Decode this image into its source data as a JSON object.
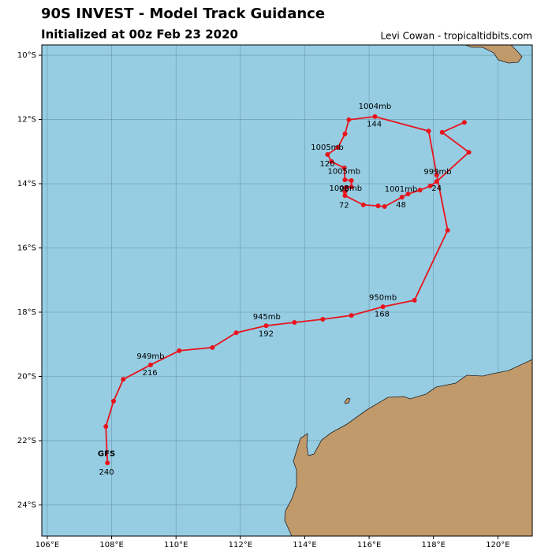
{
  "header": {
    "title": "90S INVEST - Model Track Guidance",
    "subtitle": "Initialized at 00z Feb 23 2020",
    "credit": "Levi Cowan - tropicaltidbits.com"
  },
  "map": {
    "xlim": [
      105.83,
      121.07
    ],
    "ylim": [
      -24.97,
      -9.68
    ],
    "xticks": [
      {
        "value": 106,
        "label": "106°E"
      },
      {
        "value": 108,
        "label": "108°E"
      },
      {
        "value": 110,
        "label": "110°E"
      },
      {
        "value": 112,
        "label": "112°E"
      },
      {
        "value": 114,
        "label": "114°E"
      },
      {
        "value": 116,
        "label": "116°E"
      },
      {
        "value": 118,
        "label": "118°E"
      },
      {
        "value": 120,
        "label": "120°E"
      }
    ],
    "yticks": [
      {
        "value": -10,
        "label": "10°S"
      },
      {
        "value": -12,
        "label": "12°S"
      },
      {
        "value": -14,
        "label": "14°S"
      },
      {
        "value": -16,
        "label": "16°S"
      },
      {
        "value": -18,
        "label": "18°S"
      },
      {
        "value": -20,
        "label": "20°S"
      },
      {
        "value": -22,
        "label": "22°S"
      },
      {
        "value": -24,
        "label": "24°S"
      }
    ],
    "track": {
      "color": "#e8141c",
      "lon": [
        107.87,
        107.82,
        108.06,
        108.36,
        109.21,
        110.1,
        111.13,
        111.87,
        112.8,
        113.68,
        114.56,
        115.45,
        116.43,
        117.41,
        118.44,
        118.1,
        117.85,
        116.18,
        115.37,
        115.25,
        115.03,
        114.71,
        114.83,
        115.23,
        115.25,
        115.45,
        115.45,
        115.28,
        115.25,
        115.25,
        115.82,
        116.28,
        116.48,
        117.02,
        117.21,
        117.58,
        117.9,
        118.1,
        119.1,
        118.27,
        118.96
      ],
      "lat": [
        -22.69,
        -21.56,
        -20.77,
        -20.09,
        -19.64,
        -19.2,
        -19.1,
        -18.64,
        -18.42,
        -18.32,
        -18.22,
        -18.1,
        -17.83,
        -17.63,
        -15.45,
        -13.73,
        -12.36,
        -11.91,
        -12.01,
        -12.45,
        -12.87,
        -13.09,
        -13.31,
        -13.51,
        -13.88,
        -13.9,
        -14.1,
        -14.12,
        -14.25,
        -14.37,
        -14.66,
        -14.69,
        -14.71,
        -14.42,
        -14.32,
        -14.2,
        -14.07,
        -13.93,
        -13.02,
        -12.4,
        -12.09
      ]
    },
    "annotations": [
      {
        "text": "1004mb",
        "lon": 116.18,
        "lat": -11.6
      },
      {
        "text": "144",
        "lon": 116.16,
        "lat": -12.15
      },
      {
        "text": "1005mb",
        "lon": 114.7,
        "lat": -12.87
      },
      {
        "text": "120",
        "lon": 114.7,
        "lat": -13.38
      },
      {
        "text": "1005mb",
        "lon": 115.22,
        "lat": -13.62
      },
      {
        "text": "1008mb",
        "lon": 115.27,
        "lat": -14.15
      },
      {
        "text": "96",
        "lon": 115.22,
        "lat": -14.17
      },
      {
        "text": "72",
        "lon": 115.22,
        "lat": -14.67
      },
      {
        "text": "1001mb",
        "lon": 116.99,
        "lat": -14.17
      },
      {
        "text": "48",
        "lon": 116.99,
        "lat": -14.66
      },
      {
        "text": "999mb",
        "lon": 118.13,
        "lat": -13.63
      },
      {
        "text": "24",
        "lon": 118.1,
        "lat": -14.15
      },
      {
        "text": "950mb",
        "lon": 116.43,
        "lat": -17.55
      },
      {
        "text": "168",
        "lon": 116.4,
        "lat": -18.06
      },
      {
        "text": "945mb",
        "lon": 112.82,
        "lat": -18.15
      },
      {
        "text": "192",
        "lon": 112.8,
        "lat": -18.67
      },
      {
        "text": "949mb",
        "lon": 109.21,
        "lat": -19.37
      },
      {
        "text": "216",
        "lon": 109.19,
        "lat": -19.89
      },
      {
        "text": "GFS",
        "lon": 107.84,
        "lat": -22.4
      },
      {
        "text": "240",
        "lon": 107.84,
        "lat": -22.98
      }
    ]
  }
}
